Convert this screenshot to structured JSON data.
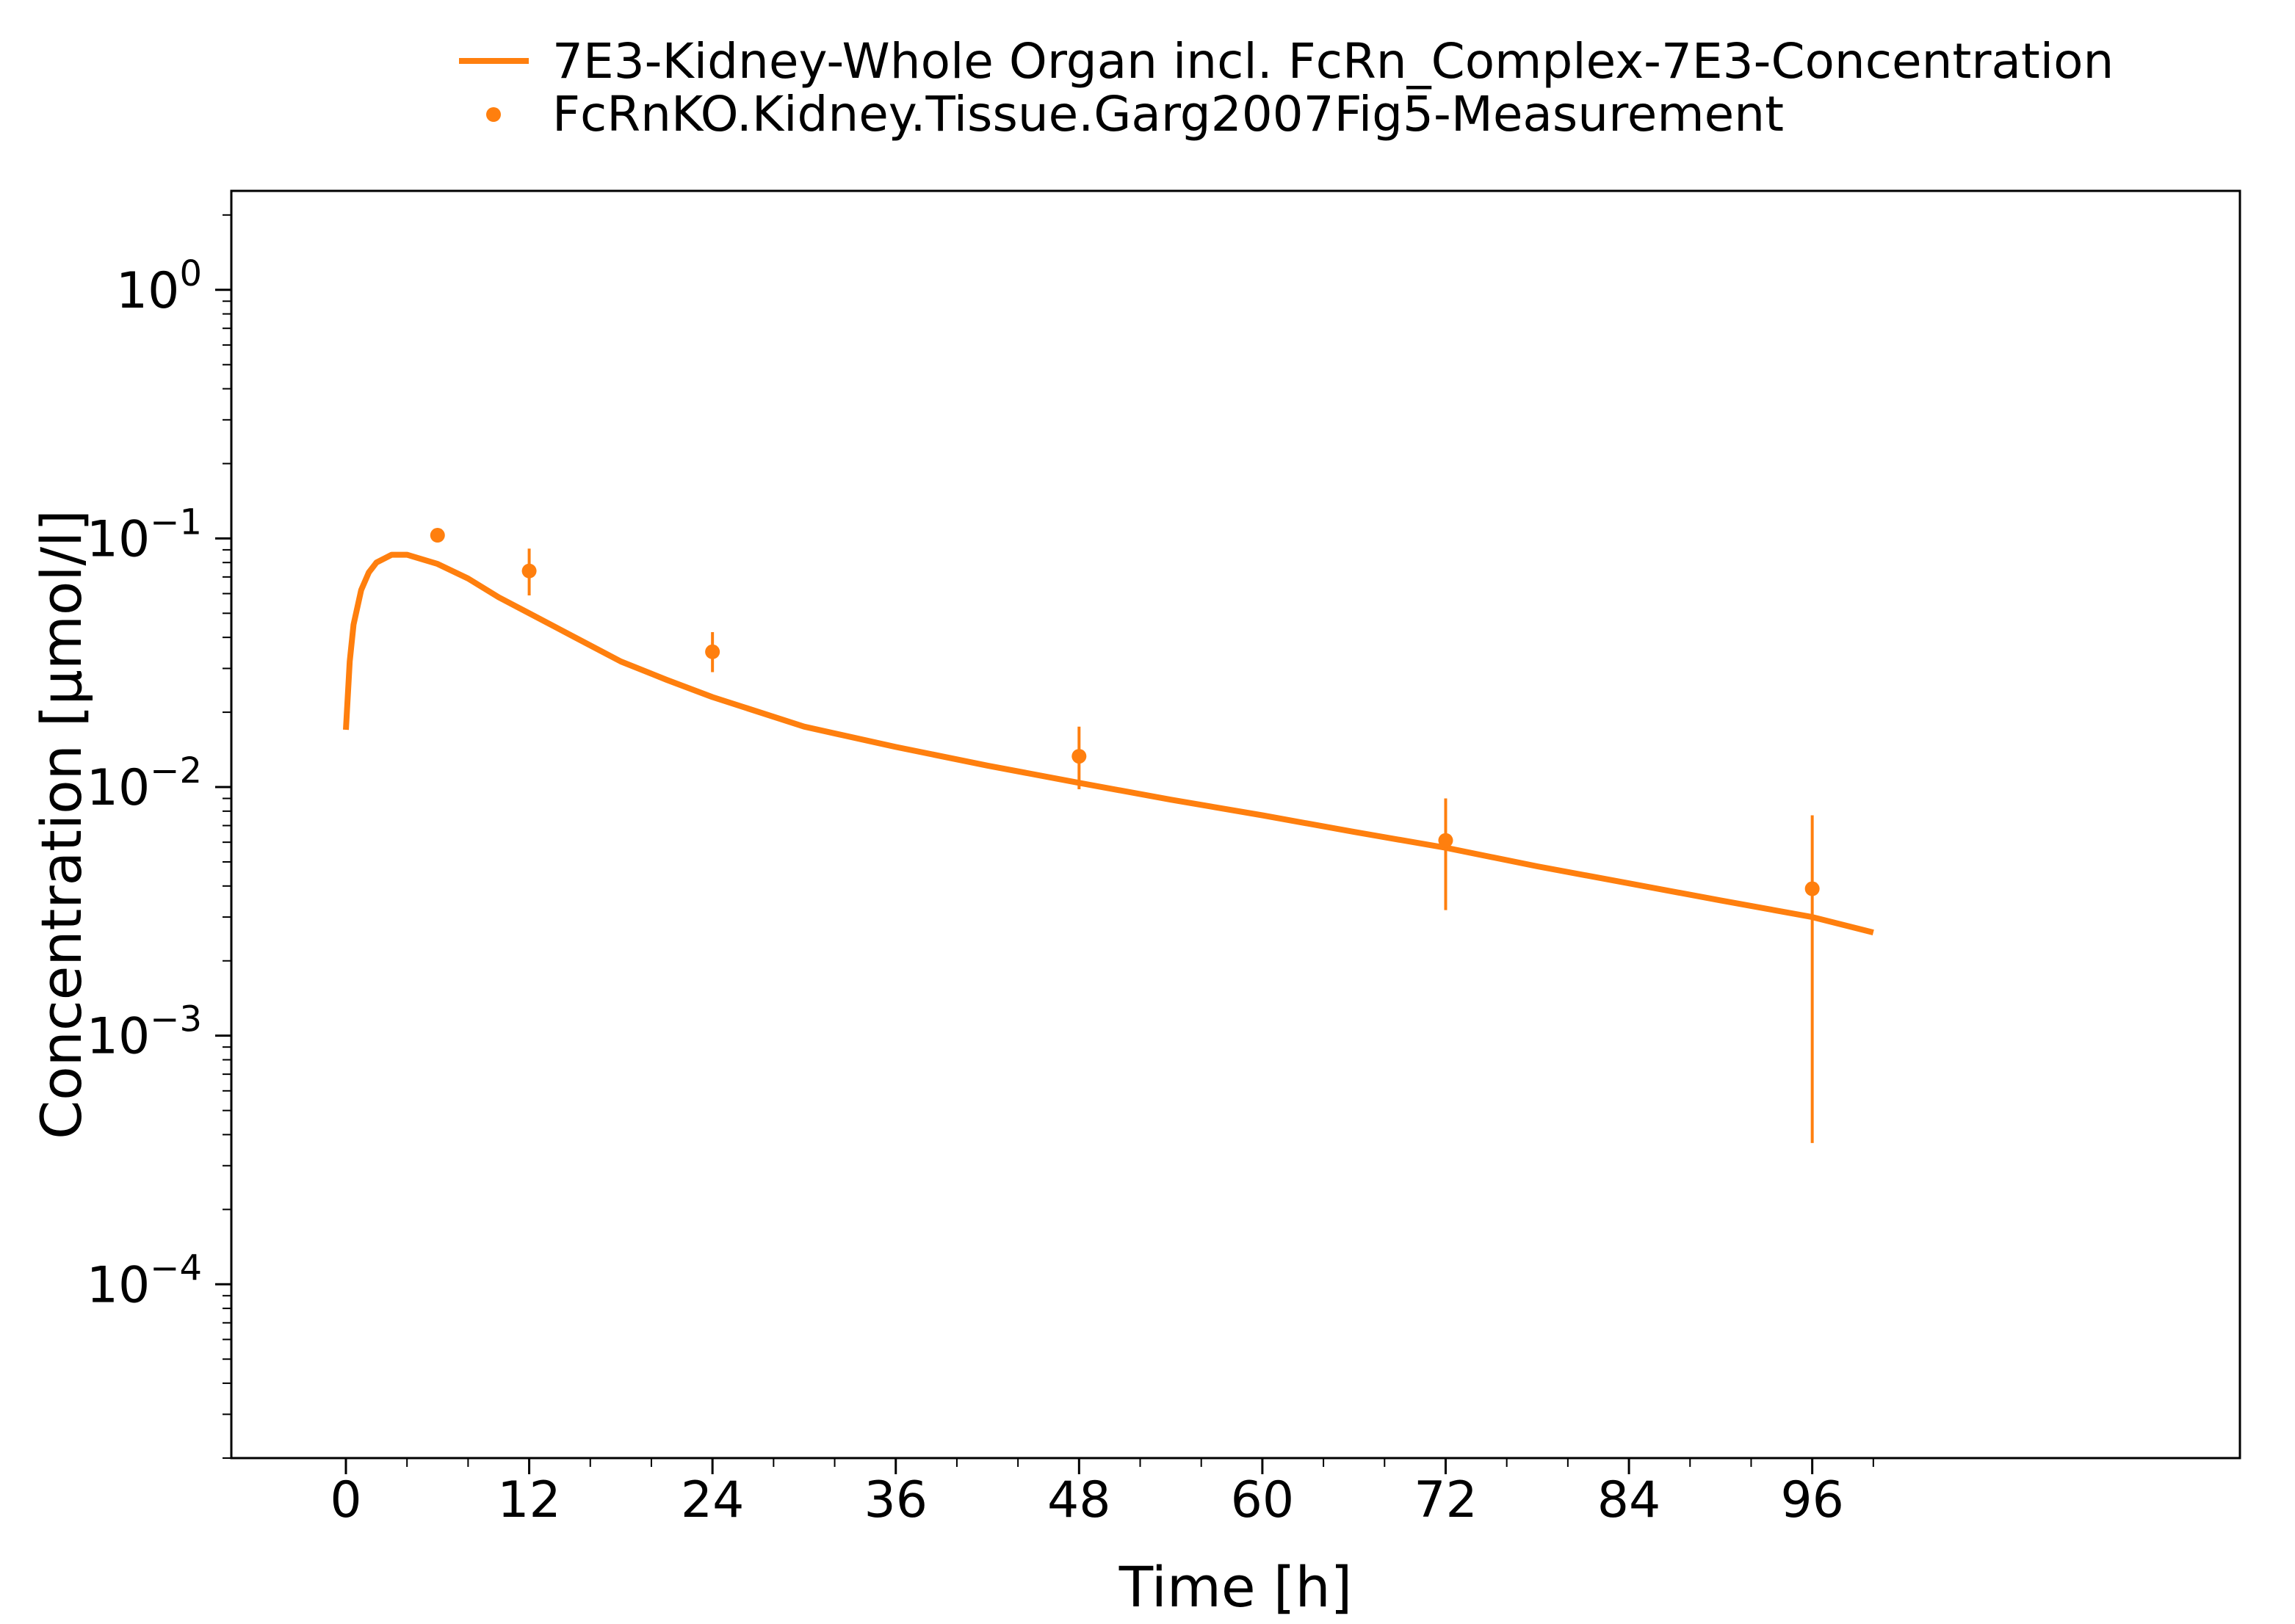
{
  "chart_data": {
    "type": "line",
    "title": "",
    "xlabel": "Time [h]",
    "ylabel": "Concentration [µmol/l]",
    "xlim": [
      -7.5,
      124
    ],
    "ylim": [
      2e-05,
      2.5
    ],
    "y_scale": "log",
    "x_ticks": [
      0,
      12,
      24,
      36,
      48,
      60,
      72,
      84,
      96
    ],
    "x_tick_labels": [
      "0",
      "12",
      "24",
      "36",
      "48",
      "60",
      "72",
      "84",
      "96"
    ],
    "y_ticks": [
      0.0001,
      0.001,
      0.01,
      0.1,
      1
    ],
    "y_tick_base": "10",
    "y_tick_exponents": [
      "−4",
      "−3",
      "−2",
      "−1",
      "0"
    ],
    "grid": false,
    "legend_position": "top-center, outside plot",
    "series": [
      {
        "name": "7E3-Kidney-Whole Organ incl. FcRn_Complex-7E3-Concentration",
        "kind": "line",
        "color": "#ff7f0e",
        "x": [
          0,
          0.25,
          0.5,
          1,
          1.5,
          2,
          3,
          4,
          6,
          8,
          10,
          12,
          15,
          18,
          21,
          24,
          30,
          36,
          42,
          48,
          54,
          60,
          66,
          72,
          78,
          84,
          90,
          96,
          100
        ],
        "y": [
          0.017,
          0.032,
          0.045,
          0.062,
          0.073,
          0.08,
          0.086,
          0.086,
          0.079,
          0.069,
          0.058,
          0.05,
          0.04,
          0.032,
          0.027,
          0.023,
          0.0175,
          0.0145,
          0.0122,
          0.0104,
          0.0089,
          0.0077,
          0.0066,
          0.0057,
          0.0048,
          0.0041,
          0.0035,
          0.003,
          0.0026
        ]
      },
      {
        "name": "FcRnKO.Kidney.Tissue.Garg2007Fig5-Measurement",
        "kind": "scatter",
        "color": "#ff7f0e",
        "x": [
          6,
          12,
          24,
          48,
          72,
          96
        ],
        "y": [
          0.103,
          0.074,
          0.035,
          0.0133,
          0.0061,
          0.0039
        ],
        "y_err_low": [
          0.103,
          0.059,
          0.029,
          0.0098,
          0.0032,
          0.00037
        ],
        "y_err_high": [
          0.103,
          0.091,
          0.042,
          0.0175,
          0.009,
          0.0077
        ]
      }
    ]
  }
}
